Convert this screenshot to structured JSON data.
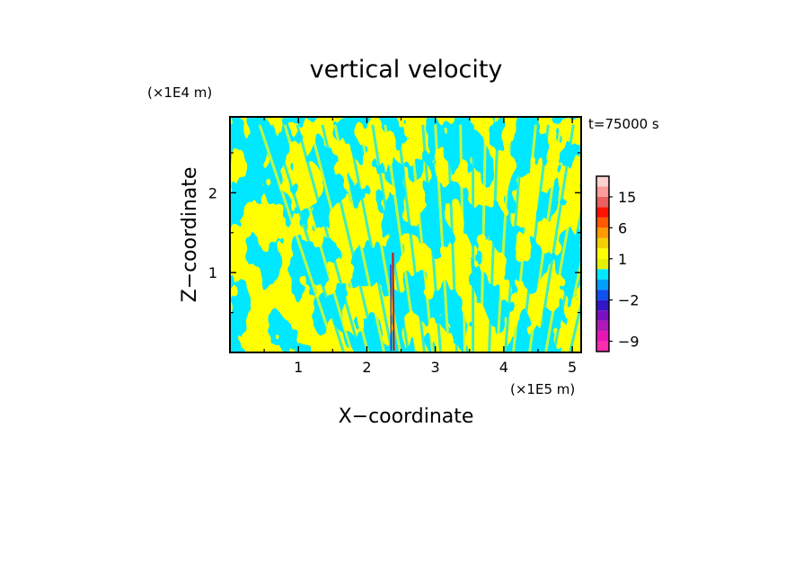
{
  "chart_data": {
    "type": "heatmap",
    "title": "vertical velocity",
    "xlabel": "X−coordinate",
    "ylabel": "Z−coordinate",
    "x_unit": "(×1E5 m)",
    "y_unit": "(×1E4 m)",
    "time_label": "t=75000 s",
    "xlim": [
      0,
      5.13
    ],
    "ylim": [
      0,
      2.95
    ],
    "x_ticks": [
      1,
      2,
      3,
      4,
      5
    ],
    "y_ticks": [
      1,
      2
    ],
    "x_tick_labels": [
      "1",
      "2",
      "3",
      "4",
      "5"
    ],
    "y_tick_labels": [
      "1",
      "2"
    ],
    "field_colors": {
      "positive_small": "#ffff00",
      "negative_small": "#00e8ff",
      "strong_positive": "#dd1100",
      "strong_negative": "#1a1acc"
    },
    "strong_updraft_x": 2.38,
    "colorbar": {
      "levels": [
        -12,
        -9,
        -6,
        -4,
        -3,
        -2,
        -1,
        0,
        0.5,
        1,
        2,
        3,
        6,
        9,
        12,
        15,
        18,
        21
      ],
      "colors": [
        "#ff2cae",
        "#e616b6",
        "#b01ab8",
        "#7a10c0",
        "#3216c6",
        "#1050ee",
        "#00a0ff",
        "#00e8ff",
        "#e8f000",
        "#ffff00",
        "#f4d000",
        "#ff9a00",
        "#ff5a00",
        "#ff1200",
        "#e86060",
        "#ff9a9a",
        "#ffd0d0"
      ],
      "tick_labels": [
        {
          "value": 15,
          "text": "15"
        },
        {
          "value": 6,
          "text": "6"
        },
        {
          "value": 1,
          "text": "1"
        },
        {
          "value": -2,
          "text": "−2"
        },
        {
          "value": -9,
          "text": "−9"
        }
      ]
    }
  }
}
